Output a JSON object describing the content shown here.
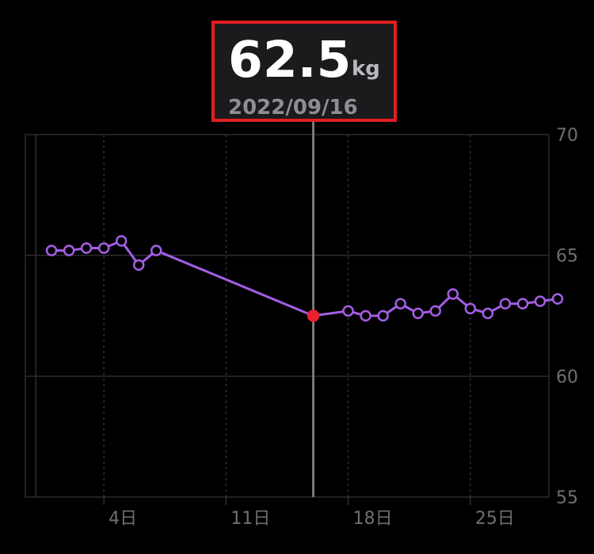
{
  "callout": {
    "value": "62.5",
    "unit": "kg",
    "date": "2022/09/16"
  },
  "chart_data": {
    "type": "line",
    "x_label_suffix": "日",
    "x_ticks": [
      4,
      11,
      18,
      25
    ],
    "xlim": [
      -0.5,
      29.5
    ],
    "y_ticks": [
      55,
      60,
      65,
      70
    ],
    "ylim": [
      55,
      70
    ],
    "grid": true,
    "selected_x": 16,
    "selected_y": 62.5,
    "series": [
      {
        "color": "#a45ee5",
        "x": [
          1,
          2,
          3,
          4,
          5,
          6,
          7,
          16,
          18,
          19,
          20,
          21,
          22,
          23,
          24,
          25,
          26,
          27,
          28,
          29,
          30
        ],
        "y": [
          65.2,
          65.2,
          65.3,
          65.3,
          65.6,
          64.6,
          65.2,
          62.5,
          62.7,
          62.5,
          62.5,
          63.0,
          62.6,
          62.7,
          63.4,
          62.8,
          62.6,
          63.0,
          63.0,
          63.1,
          63.2
        ]
      }
    ]
  }
}
